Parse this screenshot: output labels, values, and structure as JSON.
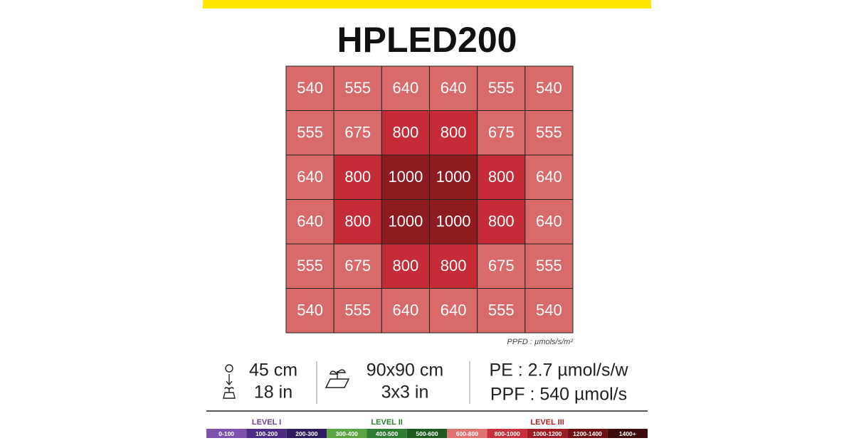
{
  "chart_data": {
    "type": "heatmap",
    "title": "HPLED200",
    "unit_note": "PPFD : µmols/s/m²",
    "values": [
      [
        540,
        555,
        640,
        640,
        555,
        540
      ],
      [
        555,
        675,
        800,
        800,
        675,
        555
      ],
      [
        640,
        800,
        1000,
        1000,
        800,
        640
      ],
      [
        640,
        800,
        1000,
        1000,
        800,
        640
      ],
      [
        555,
        675,
        800,
        800,
        675,
        555
      ],
      [
        540,
        555,
        640,
        640,
        555,
        540
      ]
    ],
    "colors": [
      [
        "#d86a6a",
        "#d86a6a",
        "#d86a6a",
        "#d86a6a",
        "#d86a6a",
        "#d86a6a"
      ],
      [
        "#d86a6a",
        "#d86a6a",
        "#c52c37",
        "#c52c37",
        "#d86a6a",
        "#d86a6a"
      ],
      [
        "#d86a6a",
        "#c52c37",
        "#8e1b1f",
        "#8e1b1f",
        "#c52c37",
        "#d86a6a"
      ],
      [
        "#d86a6a",
        "#c52c37",
        "#8e1b1f",
        "#8e1b1f",
        "#c52c37",
        "#d86a6a"
      ],
      [
        "#d86a6a",
        "#d86a6a",
        "#c52c37",
        "#c52c37",
        "#d86a6a",
        "#d86a6a"
      ],
      [
        "#d86a6a",
        "#d86a6a",
        "#d86a6a",
        "#d86a6a",
        "#d86a6a",
        "#d86a6a"
      ]
    ],
    "info": {
      "height_cm": "45 cm",
      "height_in": "18 in",
      "area_cm": "90x90 cm",
      "area_in": "3x3 in",
      "pe": "PE : 2.7 µmol/s/w",
      "ppf": "PPF : 540 µmol/s"
    },
    "legend": {
      "levels": [
        {
          "label": "LEVEL I",
          "color": "#6a3d9a"
        },
        {
          "label": "LEVEL II",
          "color": "#2e7d32"
        },
        {
          "label": "LEVEL III",
          "color": "#b71c1c"
        }
      ],
      "bins": [
        {
          "label": "0-100",
          "color": "#7d52ad"
        },
        {
          "label": "100-200",
          "color": "#4b2b86"
        },
        {
          "label": "200-300",
          "color": "#2f1b60"
        },
        {
          "label": "300-400",
          "color": "#5ca342"
        },
        {
          "label": "400-500",
          "color": "#2f7d33"
        },
        {
          "label": "500-600",
          "color": "#1d5b21"
        },
        {
          "label": "600-800",
          "color": "#e07272"
        },
        {
          "label": "800-1000",
          "color": "#c8313c"
        },
        {
          "label": "1000-1200",
          "color": "#a01c24"
        },
        {
          "label": "1200-1400",
          "color": "#6e1016"
        },
        {
          "label": "1400+",
          "color": "#3e0a0c"
        }
      ]
    }
  }
}
